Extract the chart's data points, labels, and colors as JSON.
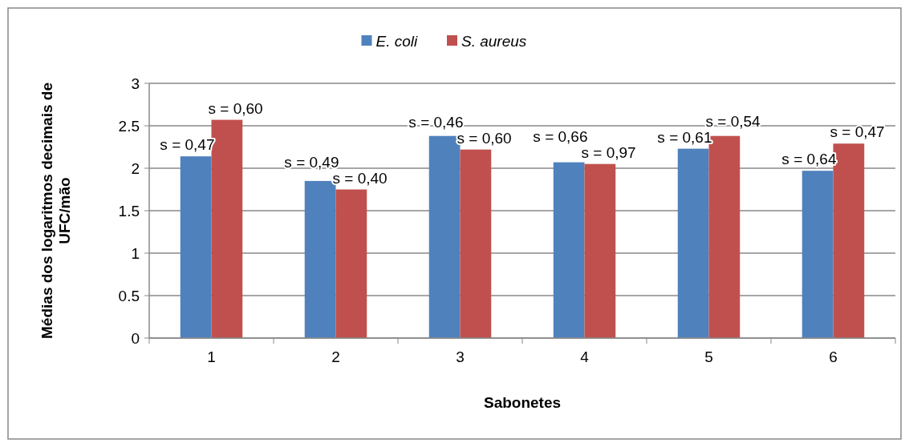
{
  "chart_data": {
    "type": "bar",
    "xlabel": "Sabonetes",
    "ylabel": "Médias dos logaritmos decimais de UFC/mão",
    "categories": [
      "1",
      "2",
      "3",
      "4",
      "5",
      "6"
    ],
    "series": [
      {
        "name": "E. coli",
        "color": "#4f81bd",
        "values": [
          2.14,
          1.85,
          2.38,
          2.07,
          2.23,
          1.97
        ]
      },
      {
        "name": "S. aureus",
        "color": "#c0504d",
        "values": [
          2.57,
          1.75,
          2.22,
          2.05,
          2.38,
          2.29
        ]
      }
    ],
    "annotations": [
      {
        "text": "s = 0,47",
        "x": "1",
        "y": 2.14
      },
      {
        "text": "s = 0,60",
        "x": "1",
        "y": 2.57
      },
      {
        "text": "s = 0,49",
        "x": "2",
        "y": 1.85
      },
      {
        "text": "s = 0,40",
        "x": "2",
        "y": 1.75
      },
      {
        "text": "s = 0,46",
        "x": "3",
        "y": 2.38
      },
      {
        "text": "s = 0,60",
        "x": "3",
        "y": 2.22
      },
      {
        "text": "s = 0,66",
        "x": "4",
        "y": 2.07
      },
      {
        "text": "s = 0,97",
        "x": "4",
        "y": 2.05
      },
      {
        "text": "s = 0,61",
        "x": "5",
        "y": 2.23
      },
      {
        "text": "s = 0,54",
        "x": "5",
        "y": 2.38
      },
      {
        "text": "s = 0,64",
        "x": "6",
        "y": 1.97
      },
      {
        "text": "s = 0,47",
        "x": "6",
        "y": 2.29
      }
    ],
    "ylim": [
      0,
      3
    ],
    "yticks": [
      0,
      0.5,
      1,
      1.5,
      2,
      2.5,
      3
    ],
    "grid": "y",
    "legend": "top"
  }
}
